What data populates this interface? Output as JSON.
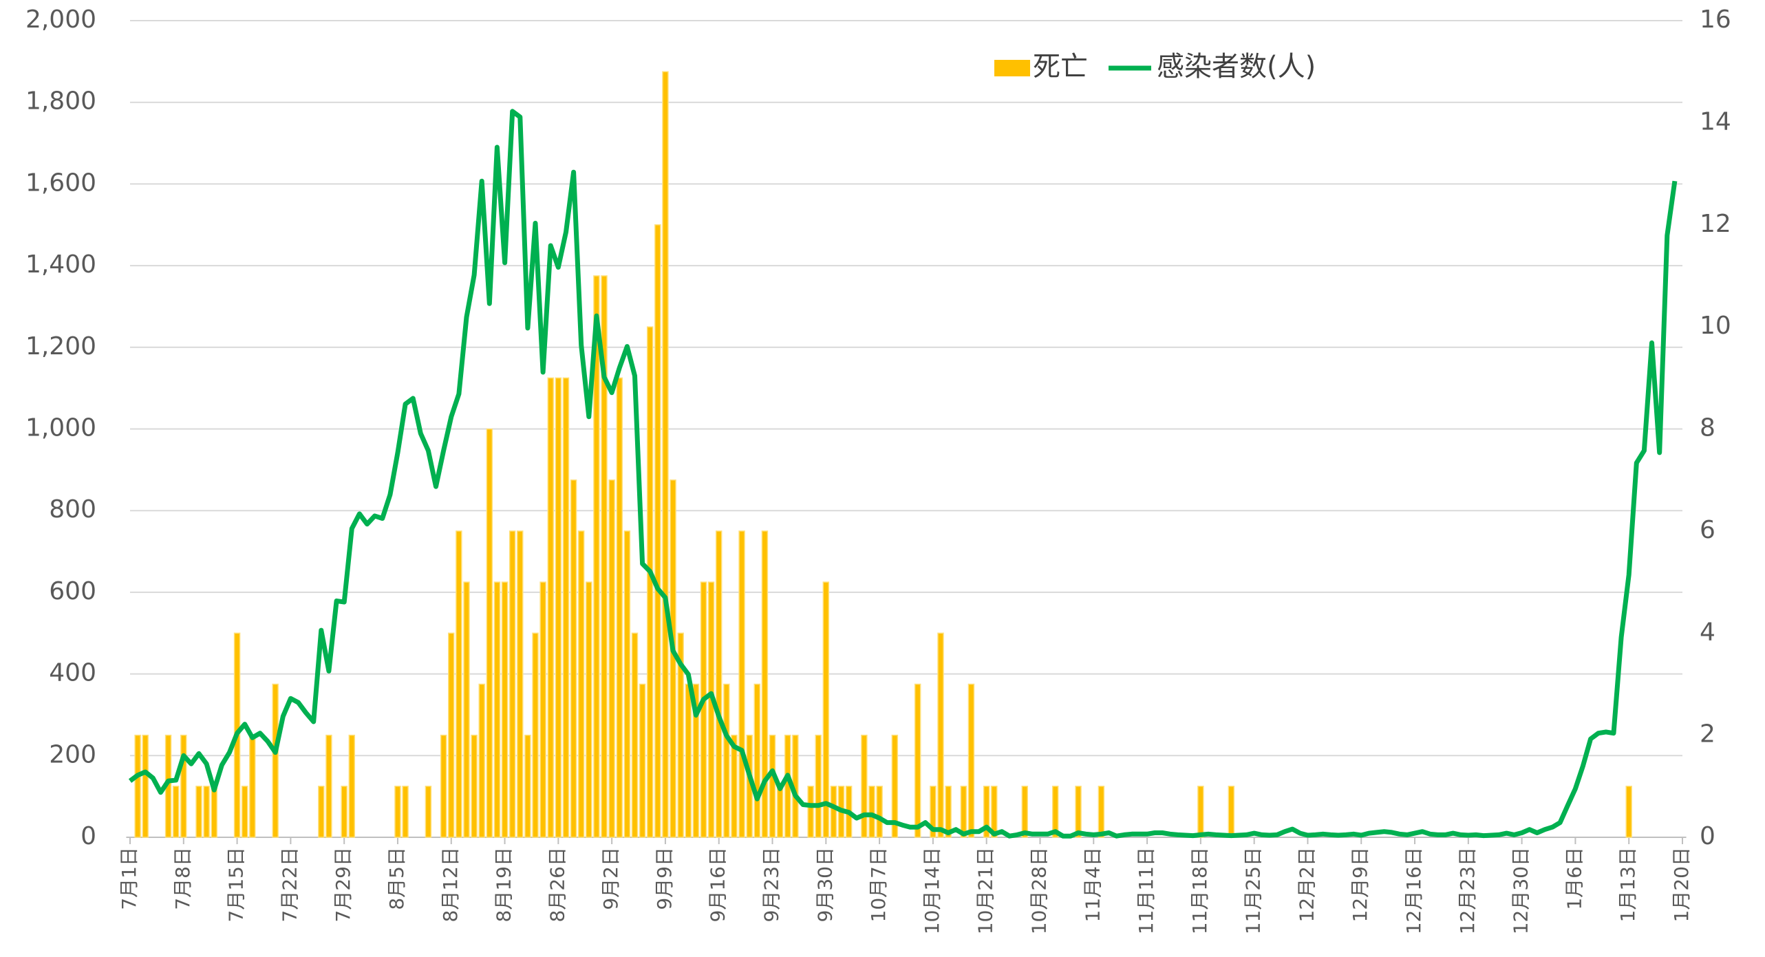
{
  "chart_data": {
    "type": "bar",
    "categories": [
      "7月1日",
      null,
      null,
      null,
      null,
      null,
      null,
      "7月8日",
      null,
      null,
      null,
      null,
      null,
      null,
      "7月15日",
      null,
      null,
      null,
      null,
      null,
      null,
      "7月22日",
      null,
      null,
      null,
      null,
      null,
      null,
      "7月29日",
      null,
      null,
      null,
      null,
      null,
      null,
      "8月5日",
      null,
      null,
      null,
      null,
      null,
      null,
      "8月12日",
      null,
      null,
      null,
      null,
      null,
      null,
      "8月19日",
      null,
      null,
      null,
      null,
      null,
      null,
      "8月26日",
      null,
      null,
      null,
      null,
      null,
      null,
      "9月2日",
      null,
      null,
      null,
      null,
      null,
      null,
      "9月9日",
      null,
      null,
      null,
      null,
      null,
      null,
      "9月16日",
      null,
      null,
      null,
      null,
      null,
      null,
      "9月23日",
      null,
      null,
      null,
      null,
      null,
      null,
      "9月30日",
      null,
      null,
      null,
      null,
      null,
      null,
      "10月7日",
      null,
      null,
      null,
      null,
      null,
      null,
      "10月14日",
      null,
      null,
      null,
      null,
      null,
      null,
      "10月21日",
      null,
      null,
      null,
      null,
      null,
      null,
      "10月28日",
      null,
      null,
      null,
      null,
      null,
      null,
      "11月4日",
      null,
      null,
      null,
      null,
      null,
      null,
      "11月11日",
      null,
      null,
      null,
      null,
      null,
      null,
      "11月18日",
      null,
      null,
      null,
      null,
      null,
      null,
      "11月25日",
      null,
      null,
      null,
      null,
      null,
      null,
      "12月2日",
      null,
      null,
      null,
      null,
      null,
      null,
      "12月9日",
      null,
      null,
      null,
      null,
      null,
      null,
      "12月16日",
      null,
      null,
      null,
      null,
      null,
      null,
      "12月23日",
      null,
      null,
      null,
      null,
      null,
      null,
      "12月30日",
      null,
      null,
      null,
      null,
      null,
      null,
      "1月6日",
      null,
      null,
      null,
      null,
      null,
      null,
      "1月13日",
      null,
      null,
      null,
      null,
      null,
      null,
      "1月20日"
    ],
    "series": [
      {
        "name": "死亡",
        "type": "bar",
        "axis": "y2",
        "color": "#ffc000",
        "values": [
          0,
          2,
          2,
          0,
          0,
          2,
          1,
          2,
          0,
          1,
          1,
          1,
          0,
          0,
          4,
          1,
          2,
          0,
          0,
          3,
          0,
          0,
          0,
          0,
          0,
          1,
          2,
          0,
          1,
          2,
          0,
          0,
          0,
          0,
          0,
          1,
          1,
          0,
          0,
          1,
          0,
          2,
          4,
          6,
          5,
          2,
          3,
          8,
          5,
          5,
          6,
          6,
          2,
          4,
          5,
          9,
          9,
          9,
          7,
          6,
          5,
          11,
          11,
          7,
          9,
          6,
          4,
          3,
          10,
          12,
          15,
          7,
          4,
          3,
          3,
          5,
          5,
          6,
          3,
          2,
          6,
          2,
          3,
          6,
          2,
          1,
          2,
          2,
          0,
          1,
          2,
          5,
          1,
          1,
          1,
          0,
          2,
          1,
          1,
          0,
          2,
          0,
          0,
          3,
          0,
          1,
          4,
          1,
          0,
          1,
          3,
          0,
          1,
          1,
          0,
          0,
          0,
          1,
          0,
          0,
          0,
          1,
          0,
          0,
          1,
          0,
          0,
          1,
          0,
          0,
          0,
          0,
          0,
          0,
          0,
          0,
          0,
          0,
          0,
          0,
          1,
          0,
          0,
          0,
          1,
          0,
          0,
          0,
          0,
          0,
          0,
          0,
          0,
          0,
          0,
          0,
          0,
          0,
          0,
          0,
          0,
          0,
          0,
          0,
          0,
          0,
          0,
          0,
          0,
          0,
          0,
          0,
          0,
          0,
          0,
          0,
          0,
          0,
          0,
          0,
          0,
          0,
          0,
          0,
          0,
          0,
          0,
          0,
          0,
          0,
          0,
          0,
          0,
          0,
          0,
          0,
          1,
          0,
          0,
          0,
          0,
          0,
          0,
          0
        ]
      },
      {
        "name": "感染者数(人)",
        "type": "line",
        "axis": "y",
        "color": "#00b050",
        "values": [
          138,
          152,
          160,
          145,
          110,
          138,
          140,
          200,
          180,
          205,
          180,
          116,
          177,
          208,
          255,
          277,
          244,
          255,
          235,
          208,
          296,
          340,
          330,
          305,
          283,
          507,
          407,
          579,
          576,
          756,
          792,
          767,
          787,
          781,
          839,
          942,
          1061,
          1075,
          989,
          947,
          859,
          947,
          1030,
          1086,
          1274,
          1377,
          1607,
          1307,
          1690,
          1407,
          1778,
          1764,
          1247,
          1504,
          1139,
          1449,
          1396,
          1482,
          1629,
          1205,
          1030,
          1277,
          1127,
          1089,
          1150,
          1202,
          1130,
          670,
          651,
          609,
          587,
          457,
          424,
          399,
          299,
          338,
          352,
          296,
          249,
          222,
          213,
          152,
          94,
          138,
          163,
          119,
          152,
          102,
          80,
          78,
          78,
          83,
          75,
          66,
          61,
          47,
          55,
          55,
          47,
          36,
          36,
          30,
          25,
          25,
          36,
          19,
          19,
          11,
          19,
          8,
          14,
          14,
          25,
          8,
          14,
          3,
          6,
          11,
          8,
          8,
          8,
          14,
          3,
          3,
          11,
          8,
          6,
          8,
          11,
          3,
          6,
          8,
          8,
          8,
          11,
          11,
          8,
          6,
          5,
          4,
          6,
          8,
          6,
          5,
          4,
          5,
          6,
          10,
          6,
          5,
          6,
          14,
          20,
          10,
          5,
          6,
          8,
          6,
          5,
          6,
          8,
          5,
          10,
          12,
          14,
          12,
          8,
          6,
          10,
          14,
          8,
          6,
          6,
          10,
          6,
          5,
          6,
          4,
          5,
          6,
          10,
          6,
          11,
          19,
          11,
          19,
          25,
          36,
          78,
          119,
          175,
          241,
          255,
          258,
          255,
          490,
          643,
          917,
          947,
          1211,
          942,
          1474,
          1607,
          null
        ]
      }
    ],
    "ylim": [
      0,
      2000
    ],
    "yticks": [
      0,
      200,
      400,
      600,
      800,
      {
        "value": 1000,
        "label": "1,000"
      },
      {
        "value": 1200,
        "label": "1,200"
      },
      {
        "value": 1400,
        "label": "1,400"
      },
      {
        "value": 1600,
        "label": "1,600"
      },
      {
        "value": 1800,
        "label": "1,800"
      },
      {
        "value": 2000,
        "label": "2,000"
      }
    ],
    "y2lim": [
      0,
      16
    ],
    "y2ticks": [
      0,
      2,
      4,
      6,
      8,
      10,
      12,
      14,
      16
    ],
    "grid": true,
    "legend": "top"
  }
}
